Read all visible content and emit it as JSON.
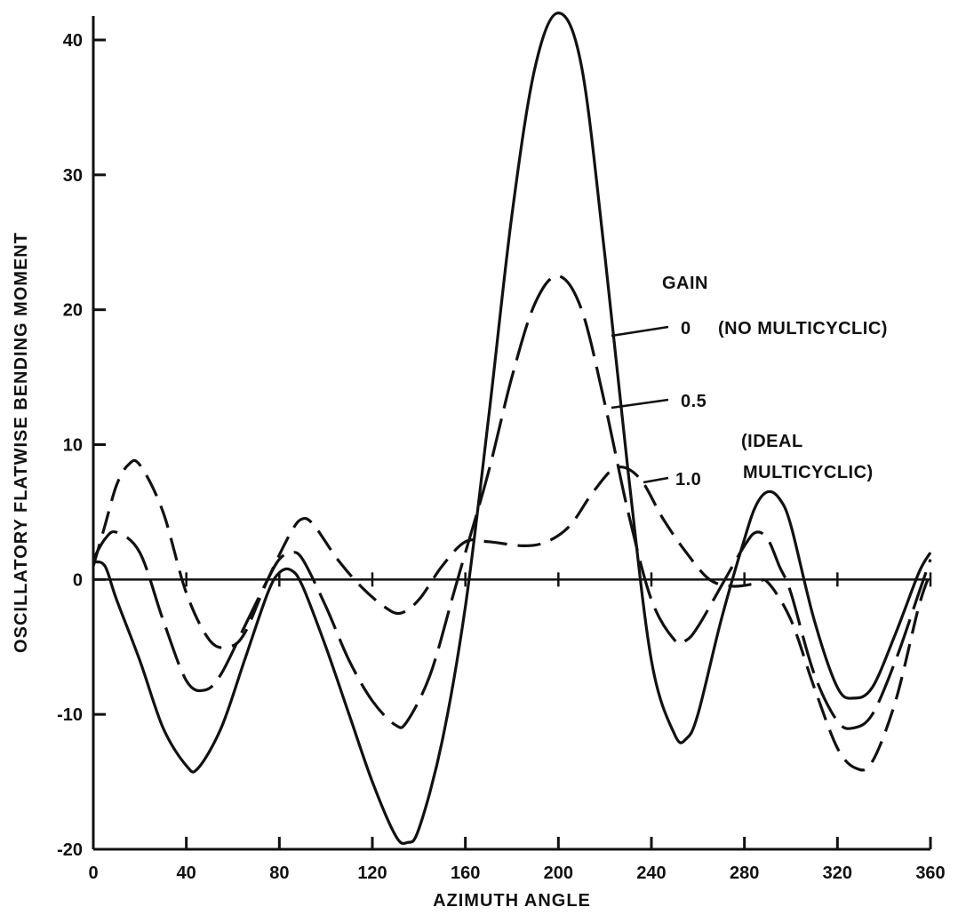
{
  "chart_data": {
    "type": "line",
    "title": "",
    "xlabel": "AZIMUTH ANGLE",
    "ylabel": "OSCILLATORY FLATWISE BENDING MOMENT",
    "xlim": [
      0,
      360
    ],
    "ylim": [
      -20,
      42
    ],
    "x_ticks": [
      0,
      40,
      80,
      120,
      160,
      200,
      240,
      280,
      320,
      360
    ],
    "x_tick_labels": [
      "0",
      "40",
      "80",
      "120",
      "160",
      "200",
      "240",
      "280",
      "320",
      "360"
    ],
    "y_ticks": [
      -20,
      -10,
      0,
      10,
      20,
      30,
      40
    ],
    "y_tick_labels": [
      "-20",
      "-10",
      "0",
      "10",
      "20",
      "30",
      "40"
    ],
    "grid": false,
    "legend_title": "GAIN",
    "legend_position": "right",
    "series": [
      {
        "name": "0",
        "annotation": "(NO MULTICYCLIC)",
        "style": "solid",
        "points": [
          [
            0,
            1.3
          ],
          [
            5,
            1.0
          ],
          [
            10,
            -1.5
          ],
          [
            20,
            -6
          ],
          [
            30,
            -11
          ],
          [
            40,
            -13.8
          ],
          [
            45,
            -14
          ],
          [
            55,
            -11
          ],
          [
            65,
            -6
          ],
          [
            75,
            -1
          ],
          [
            80,
            0.5
          ],
          [
            85,
            0.7
          ],
          [
            90,
            -0.5
          ],
          [
            100,
            -5
          ],
          [
            110,
            -10
          ],
          [
            120,
            -15
          ],
          [
            130,
            -19
          ],
          [
            135,
            -19.5
          ],
          [
            140,
            -18.5
          ],
          [
            150,
            -12
          ],
          [
            160,
            -2
          ],
          [
            170,
            12
          ],
          [
            180,
            27
          ],
          [
            190,
            38
          ],
          [
            200,
            42
          ],
          [
            210,
            38
          ],
          [
            220,
            24
          ],
          [
            230,
            8
          ],
          [
            240,
            -6
          ],
          [
            250,
            -11.5
          ],
          [
            255,
            -11.8
          ],
          [
            260,
            -10
          ],
          [
            270,
            -3
          ],
          [
            280,
            3
          ],
          [
            285,
            5.5
          ],
          [
            290,
            6.5
          ],
          [
            295,
            6
          ],
          [
            300,
            4
          ],
          [
            310,
            -3
          ],
          [
            320,
            -8
          ],
          [
            327,
            -8.8
          ],
          [
            335,
            -8
          ],
          [
            345,
            -4
          ],
          [
            355,
            0.5
          ],
          [
            360,
            2
          ]
        ]
      },
      {
        "name": "0.5",
        "annotation": "",
        "style": "long-dash",
        "points": [
          [
            0,
            1.5
          ],
          [
            5,
            3
          ],
          [
            10,
            3.5
          ],
          [
            20,
            2
          ],
          [
            30,
            -3
          ],
          [
            40,
            -7.5
          ],
          [
            48,
            -8.2
          ],
          [
            55,
            -7
          ],
          [
            65,
            -3.5
          ],
          [
            75,
            0
          ],
          [
            80,
            1.5
          ],
          [
            85,
            2
          ],
          [
            90,
            1.5
          ],
          [
            100,
            -2
          ],
          [
            110,
            -6
          ],
          [
            120,
            -9
          ],
          [
            130,
            -10.8
          ],
          [
            135,
            -10.5
          ],
          [
            145,
            -7
          ],
          [
            155,
            -1
          ],
          [
            160,
            2
          ],
          [
            170,
            8
          ],
          [
            180,
            15
          ],
          [
            190,
            20.5
          ],
          [
            200,
            22.5
          ],
          [
            210,
            20
          ],
          [
            220,
            13
          ],
          [
            230,
            5
          ],
          [
            240,
            -1.5
          ],
          [
            250,
            -4.5
          ],
          [
            255,
            -4.5
          ],
          [
            260,
            -3.5
          ],
          [
            270,
            -0.5
          ],
          [
            280,
            2.5
          ],
          [
            285,
            3.5
          ],
          [
            290,
            3
          ],
          [
            295,
            1
          ],
          [
            300,
            -1
          ],
          [
            310,
            -7
          ],
          [
            320,
            -10.5
          ],
          [
            327,
            -11
          ],
          [
            335,
            -10
          ],
          [
            345,
            -6
          ],
          [
            355,
            -1
          ],
          [
            360,
            1.5
          ]
        ]
      },
      {
        "name": "1.0",
        "annotation": "(IDEAL MULTICYCLIC)",
        "style": "short-dash",
        "points": [
          [
            0,
            1
          ],
          [
            5,
            4
          ],
          [
            10,
            7
          ],
          [
            15,
            8.5
          ],
          [
            20,
            8.5
          ],
          [
            30,
            5
          ],
          [
            40,
            -1
          ],
          [
            50,
            -4.5
          ],
          [
            58,
            -5
          ],
          [
            65,
            -4
          ],
          [
            75,
            0
          ],
          [
            85,
            3.5
          ],
          [
            90,
            4.5
          ],
          [
            95,
            4
          ],
          [
            105,
            1.5
          ],
          [
            115,
            -0.5
          ],
          [
            125,
            -2
          ],
          [
            132,
            -2.5
          ],
          [
            140,
            -1.5
          ],
          [
            150,
            1
          ],
          [
            160,
            2.8
          ],
          [
            170,
            2.8
          ],
          [
            185,
            2.5
          ],
          [
            195,
            2.8
          ],
          [
            205,
            4
          ],
          [
            215,
            6.5
          ],
          [
            225,
            8.3
          ],
          [
            235,
            7.5
          ],
          [
            245,
            4.5
          ],
          [
            255,
            2
          ],
          [
            265,
            0
          ],
          [
            275,
            -0.5
          ],
          [
            285,
            -0.3
          ],
          [
            290,
            -0.2
          ],
          [
            300,
            -3
          ],
          [
            310,
            -8
          ],
          [
            320,
            -12.5
          ],
          [
            328,
            -14
          ],
          [
            335,
            -13.5
          ],
          [
            345,
            -9
          ],
          [
            355,
            -2
          ],
          [
            360,
            0.5
          ]
        ]
      }
    ]
  }
}
